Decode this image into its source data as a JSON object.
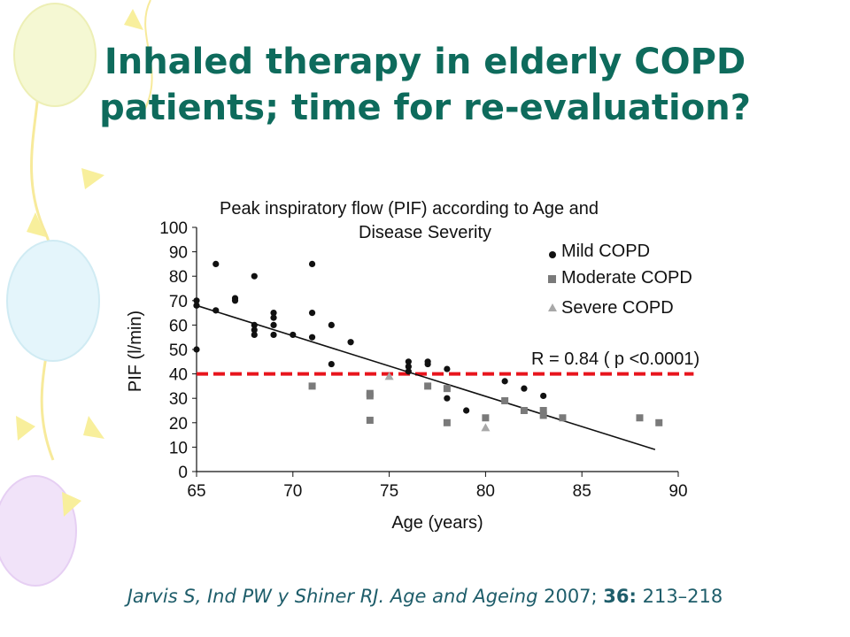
{
  "slide": {
    "title": "Inhaled therapy in elderly COPD patients; time for re-evaluation?",
    "citation": {
      "authors": "Jarvis S, Ind PW y Shiner RJ. Age and Ageing",
      "year": " 2007; ",
      "volume": "36:",
      "pages": " 213–218"
    }
  },
  "colors": {
    "title": "#0e6b5c",
    "mild": "#111111",
    "moderate": "#7a7a7a",
    "severe": "#a8a8a8",
    "threshold": "#e8141c",
    "regression": "#111111"
  },
  "chart_data": {
    "type": "scatter",
    "title_lines": [
      "Peak inspiratory flow (PIF) according to Age and",
      "Disease Severity"
    ],
    "xlabel": "Age (years)",
    "ylabel": "PIF (l/min)",
    "xlim": [
      65,
      90
    ],
    "ylim": [
      0,
      100
    ],
    "x_ticks": [
      65,
      70,
      75,
      80,
      85,
      90
    ],
    "y_ticks": [
      0,
      10,
      20,
      30,
      40,
      50,
      60,
      70,
      80,
      90,
      100
    ],
    "x_tick_labels": [
      "65",
      "70",
      "75",
      "80",
      "85",
      "90"
    ],
    "y_tick_labels": [
      "0",
      "10",
      "20",
      "30",
      "40",
      "50",
      "60",
      "70",
      "80",
      "90",
      "100"
    ],
    "annotation": "R = 0.84 ( p <0.0001)",
    "threshold_y": 40,
    "regression": {
      "x": [
        65,
        88.8
      ],
      "y": [
        68,
        9
      ]
    },
    "legend_position": "top-right",
    "series": [
      {
        "name": "Mild COPD",
        "marker": "circle",
        "points": [
          [
            65,
            70
          ],
          [
            65,
            68
          ],
          [
            65,
            50
          ],
          [
            66,
            85
          ],
          [
            66,
            66
          ],
          [
            67,
            71
          ],
          [
            67,
            70
          ],
          [
            68,
            80
          ],
          [
            68,
            60
          ],
          [
            68,
            58
          ],
          [
            68,
            56
          ],
          [
            69,
            65
          ],
          [
            69,
            63
          ],
          [
            69,
            60
          ],
          [
            69,
            56
          ],
          [
            70,
            56
          ],
          [
            71,
            85
          ],
          [
            71,
            65
          ],
          [
            71,
            55
          ],
          [
            72,
            60
          ],
          [
            72,
            44
          ],
          [
            73,
            53
          ],
          [
            76,
            45
          ],
          [
            76,
            43
          ],
          [
            76,
            41
          ],
          [
            77,
            45
          ],
          [
            77,
            44
          ],
          [
            78,
            42
          ],
          [
            78,
            30
          ],
          [
            79,
            25
          ],
          [
            81,
            37
          ],
          [
            82,
            34
          ],
          [
            83,
            31
          ]
        ]
      },
      {
        "name": "Moderate COPD",
        "marker": "square",
        "points": [
          [
            71,
            35
          ],
          [
            74,
            32
          ],
          [
            74,
            31
          ],
          [
            74,
            21
          ],
          [
            77,
            35
          ],
          [
            78,
            34
          ],
          [
            78,
            20
          ],
          [
            80,
            22
          ],
          [
            81,
            29
          ],
          [
            82,
            25
          ],
          [
            83,
            25
          ],
          [
            83,
            23
          ],
          [
            84,
            22
          ],
          [
            88,
            22
          ],
          [
            89,
            20
          ]
        ]
      },
      {
        "name": "Severe COPD",
        "marker": "triangle",
        "points": [
          [
            75,
            39
          ],
          [
            80,
            18
          ]
        ]
      }
    ]
  }
}
